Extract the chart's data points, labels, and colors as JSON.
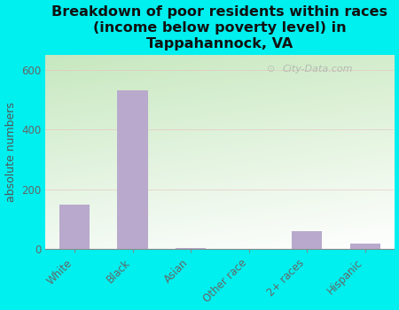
{
  "title": "Breakdown of poor residents within races\n(income below poverty level) in\nTappahannock, VA",
  "categories": [
    "White",
    "Black",
    "Asian",
    "Other race",
    "2+ races",
    "Hispanic"
  ],
  "values": [
    150,
    530,
    5,
    0,
    60,
    18
  ],
  "bar_color": "#b9a9cc",
  "ylabel": "absolute numbers",
  "ylim": [
    0,
    650
  ],
  "yticks": [
    0,
    200,
    400,
    600
  ],
  "background_color": "#00efef",
  "watermark": "City-Data.com",
  "title_fontsize": 11.5,
  "ylabel_fontsize": 9,
  "tick_fontsize": 8.5,
  "title_color": "#111111",
  "ylabel_color": "#555555",
  "tick_color": "#666666"
}
